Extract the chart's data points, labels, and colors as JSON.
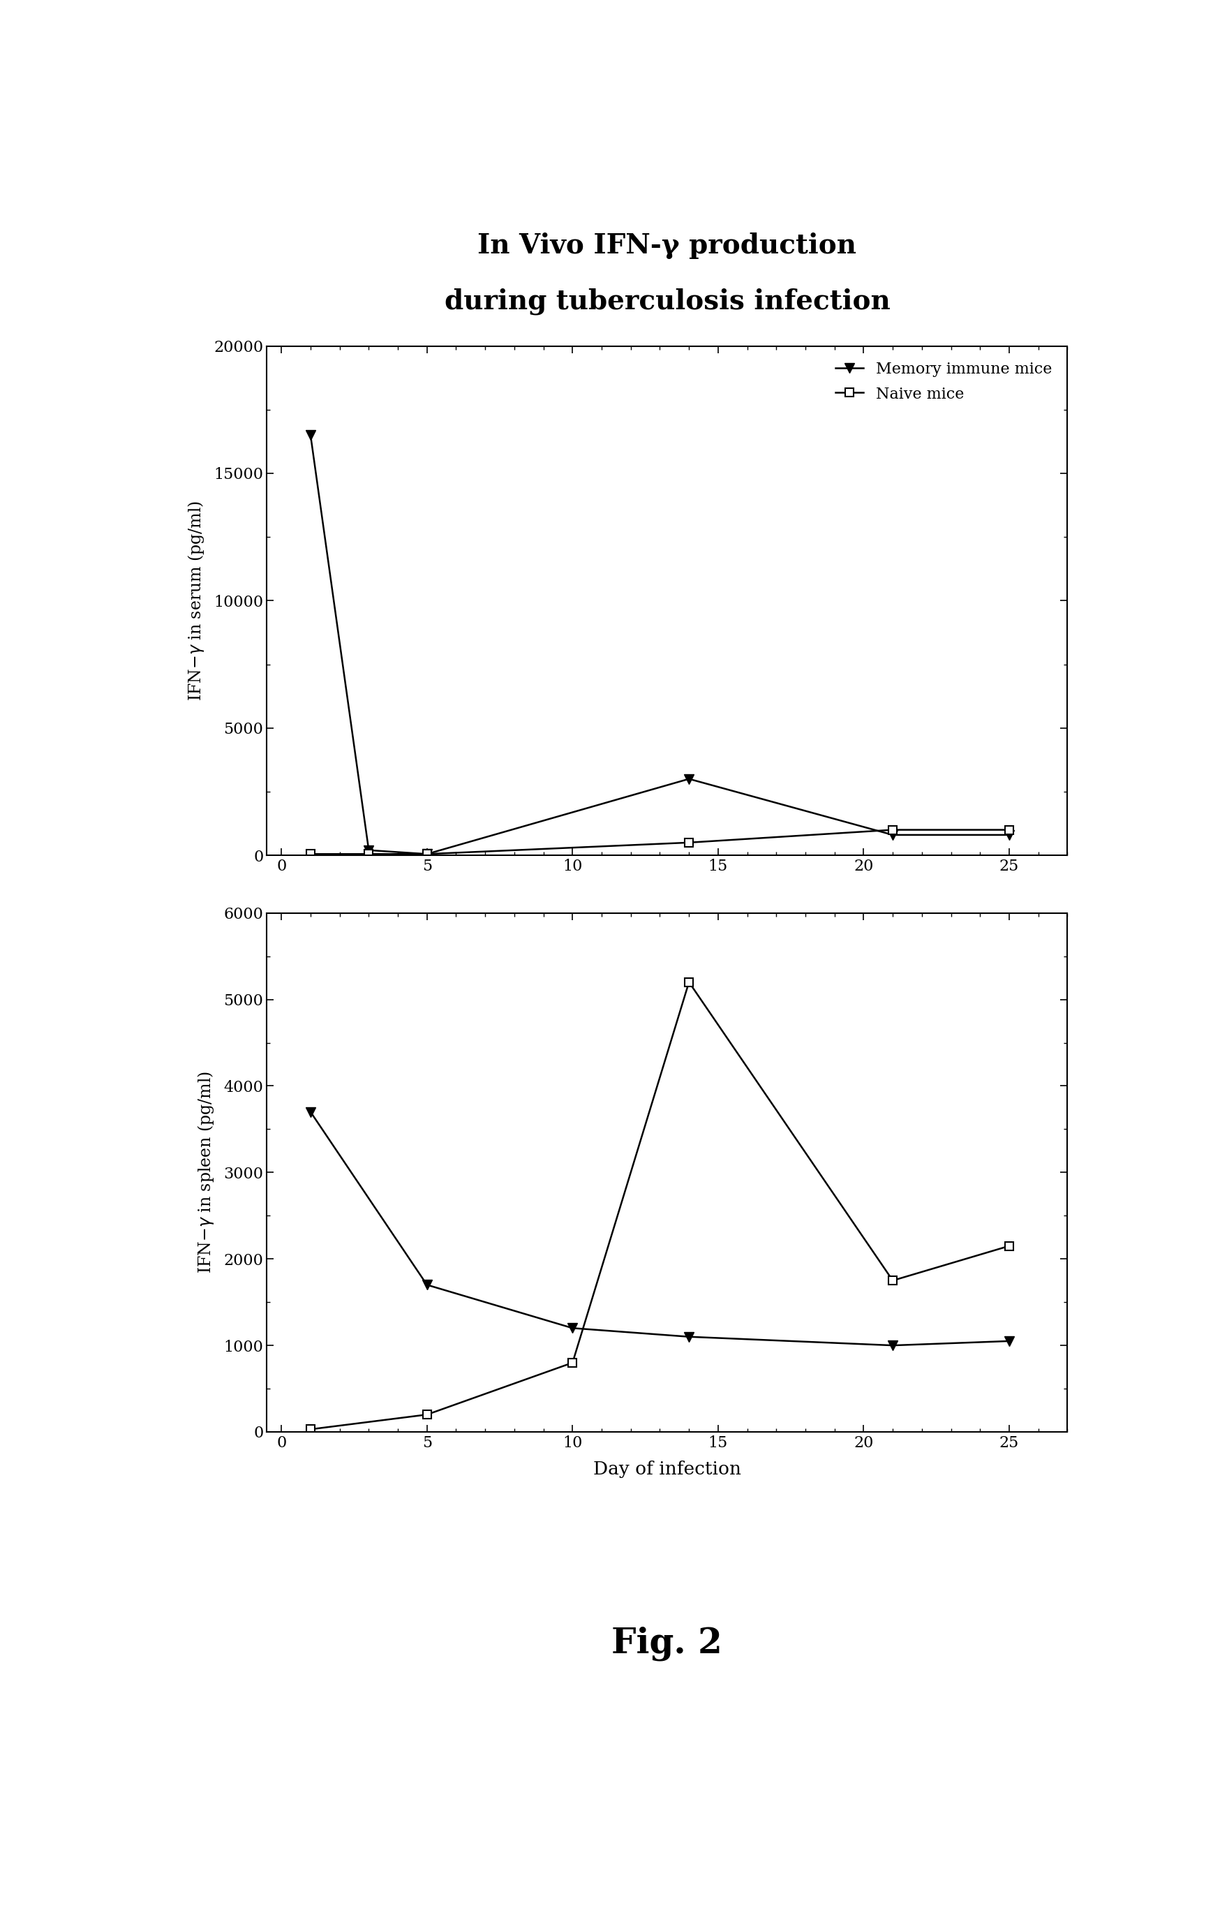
{
  "title_line1": "In Vivo IFN-γ production",
  "title_line2": "during tuberculosis infection",
  "fig_label": "Fig. 2",
  "serum": {
    "ylim": [
      0,
      20000
    ],
    "yticks": [
      0,
      5000,
      10000,
      15000,
      20000
    ],
    "memory_x": [
      1,
      3,
      5,
      14,
      21,
      25
    ],
    "memory_y": [
      16500,
      200,
      50,
      3000,
      800,
      800
    ],
    "naive_x": [
      1,
      3,
      5,
      14,
      21,
      25
    ],
    "naive_y": [
      50,
      50,
      50,
      500,
      1000,
      1000
    ]
  },
  "spleen": {
    "ylim": [
      0,
      6000
    ],
    "yticks": [
      0,
      1000,
      2000,
      3000,
      4000,
      5000,
      6000
    ],
    "memory_x": [
      1,
      5,
      10,
      14,
      21,
      25
    ],
    "memory_y": [
      3700,
      1700,
      1200,
      1100,
      1000,
      1050
    ],
    "naive_x": [
      1,
      5,
      10,
      14,
      21,
      25
    ],
    "naive_y": [
      30,
      200,
      800,
      5200,
      1750,
      2150
    ]
  },
  "xlabel": "Day of infection",
  "xlim": [
    -0.5,
    27
  ],
  "xticks": [
    0,
    5,
    10,
    15,
    20,
    25
  ],
  "xtick_labels": [
    "0",
    "5",
    "10",
    "15",
    "20",
    "25"
  ],
  "legend_memory": "Memory immune mice",
  "legend_naive": "Naive mice",
  "color": "#000000",
  "background": "#ffffff",
  "title_fontsize": 28,
  "tick_fontsize": 16,
  "label_fontsize": 17,
  "legend_fontsize": 16,
  "figlabel_fontsize": 36
}
